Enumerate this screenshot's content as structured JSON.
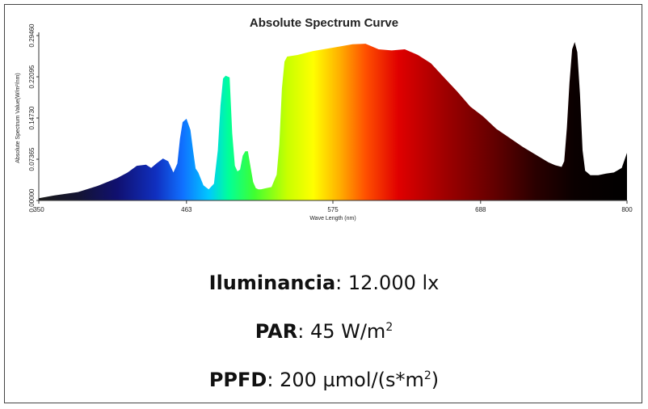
{
  "chart_data": {
    "type": "area",
    "title": "Absolute Spectrum Curve",
    "xlabel": "Wave Length (nm)",
    "ylabel": "Absolute Spectrum Value(W/m²/nm)",
    "xlim": [
      350,
      800
    ],
    "ylim": [
      0,
      0.2946
    ],
    "x_ticks": [
      "350",
      "463",
      "575",
      "688",
      "800"
    ],
    "y_ticks": [
      "0.00000",
      "0.07365",
      "0.14730",
      "0.22095",
      "0.29460"
    ],
    "x": [
      350,
      362,
      380,
      395,
      410,
      418,
      425,
      432,
      436,
      440,
      445,
      449,
      453,
      456,
      458,
      460,
      463,
      466,
      468,
      470,
      472,
      476,
      480,
      484,
      487,
      489,
      491,
      493,
      496,
      498,
      500,
      502,
      504,
      506,
      508,
      510,
      512,
      514,
      516,
      518,
      520,
      524,
      528,
      532,
      534,
      536,
      538,
      540,
      543,
      548,
      560,
      575,
      590,
      600,
      610,
      620,
      630,
      640,
      650,
      660,
      670,
      680,
      690,
      700,
      710,
      720,
      730,
      740,
      745,
      750,
      752,
      754,
      756,
      758,
      760,
      762,
      764,
      766,
      768,
      772,
      778,
      784,
      790,
      796,
      800
    ],
    "values": [
      0.004,
      0.009,
      0.015,
      0.026,
      0.04,
      0.05,
      0.062,
      0.064,
      0.058,
      0.066,
      0.075,
      0.07,
      0.05,
      0.066,
      0.11,
      0.14,
      0.146,
      0.126,
      0.09,
      0.057,
      0.05,
      0.027,
      0.02,
      0.03,
      0.09,
      0.17,
      0.218,
      0.223,
      0.22,
      0.12,
      0.062,
      0.052,
      0.055,
      0.08,
      0.088,
      0.088,
      0.06,
      0.033,
      0.022,
      0.02,
      0.02,
      0.022,
      0.024,
      0.046,
      0.1,
      0.2,
      0.248,
      0.257,
      0.258,
      0.26,
      0.267,
      0.273,
      0.279,
      0.28,
      0.27,
      0.268,
      0.27,
      0.26,
      0.245,
      0.22,
      0.195,
      0.168,
      0.15,
      0.128,
      0.112,
      0.096,
      0.082,
      0.068,
      0.063,
      0.06,
      0.07,
      0.13,
      0.21,
      0.27,
      0.283,
      0.265,
      0.19,
      0.09,
      0.053,
      0.045,
      0.045,
      0.048,
      0.05,
      0.058,
      0.085
    ],
    "grid": false,
    "legend": false
  },
  "metrics": [
    {
      "label": "Iluminancia",
      "sep": ":",
      "value": "12.000 lx",
      "sup": "",
      "after": ""
    },
    {
      "label": "PAR",
      "sep": ":",
      "value": "45 W/m",
      "sup": "2",
      "after": ""
    },
    {
      "label": "PPFD",
      "sep": ":",
      "value": "200 µmol/(s*m",
      "sup": "2",
      "after": ")"
    }
  ]
}
